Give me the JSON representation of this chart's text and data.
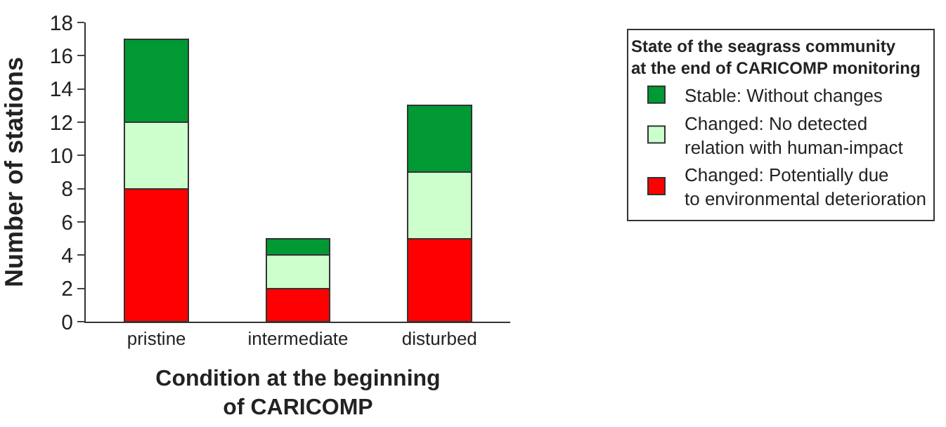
{
  "chart_data": {
    "type": "bar",
    "stacked": true,
    "categories": [
      "pristine",
      "intermediate",
      "disturbed"
    ],
    "series": [
      {
        "name": "Changed: Potentially due\nto environmental deterioration",
        "color": "#ff0000",
        "values": [
          8,
          2,
          5
        ]
      },
      {
        "name": "Changed: No detected\nrelation with human-impact",
        "color": "#ccffcc",
        "values": [
          4,
          2,
          4
        ]
      },
      {
        "name": "Stable: Without changes",
        "color": "#009933",
        "values": [
          5,
          1,
          4
        ]
      }
    ],
    "xlabel": "Condition at the beginning\nof CARICOMP",
    "ylabel": "Number of stations",
    "legend_title": "State of the seagrass community\nat the end of CARICOMP monitoring",
    "ylim": [
      0,
      18
    ],
    "yticks": [
      0,
      2,
      4,
      6,
      8,
      10,
      12,
      14,
      16,
      18
    ],
    "legend": "right"
  }
}
